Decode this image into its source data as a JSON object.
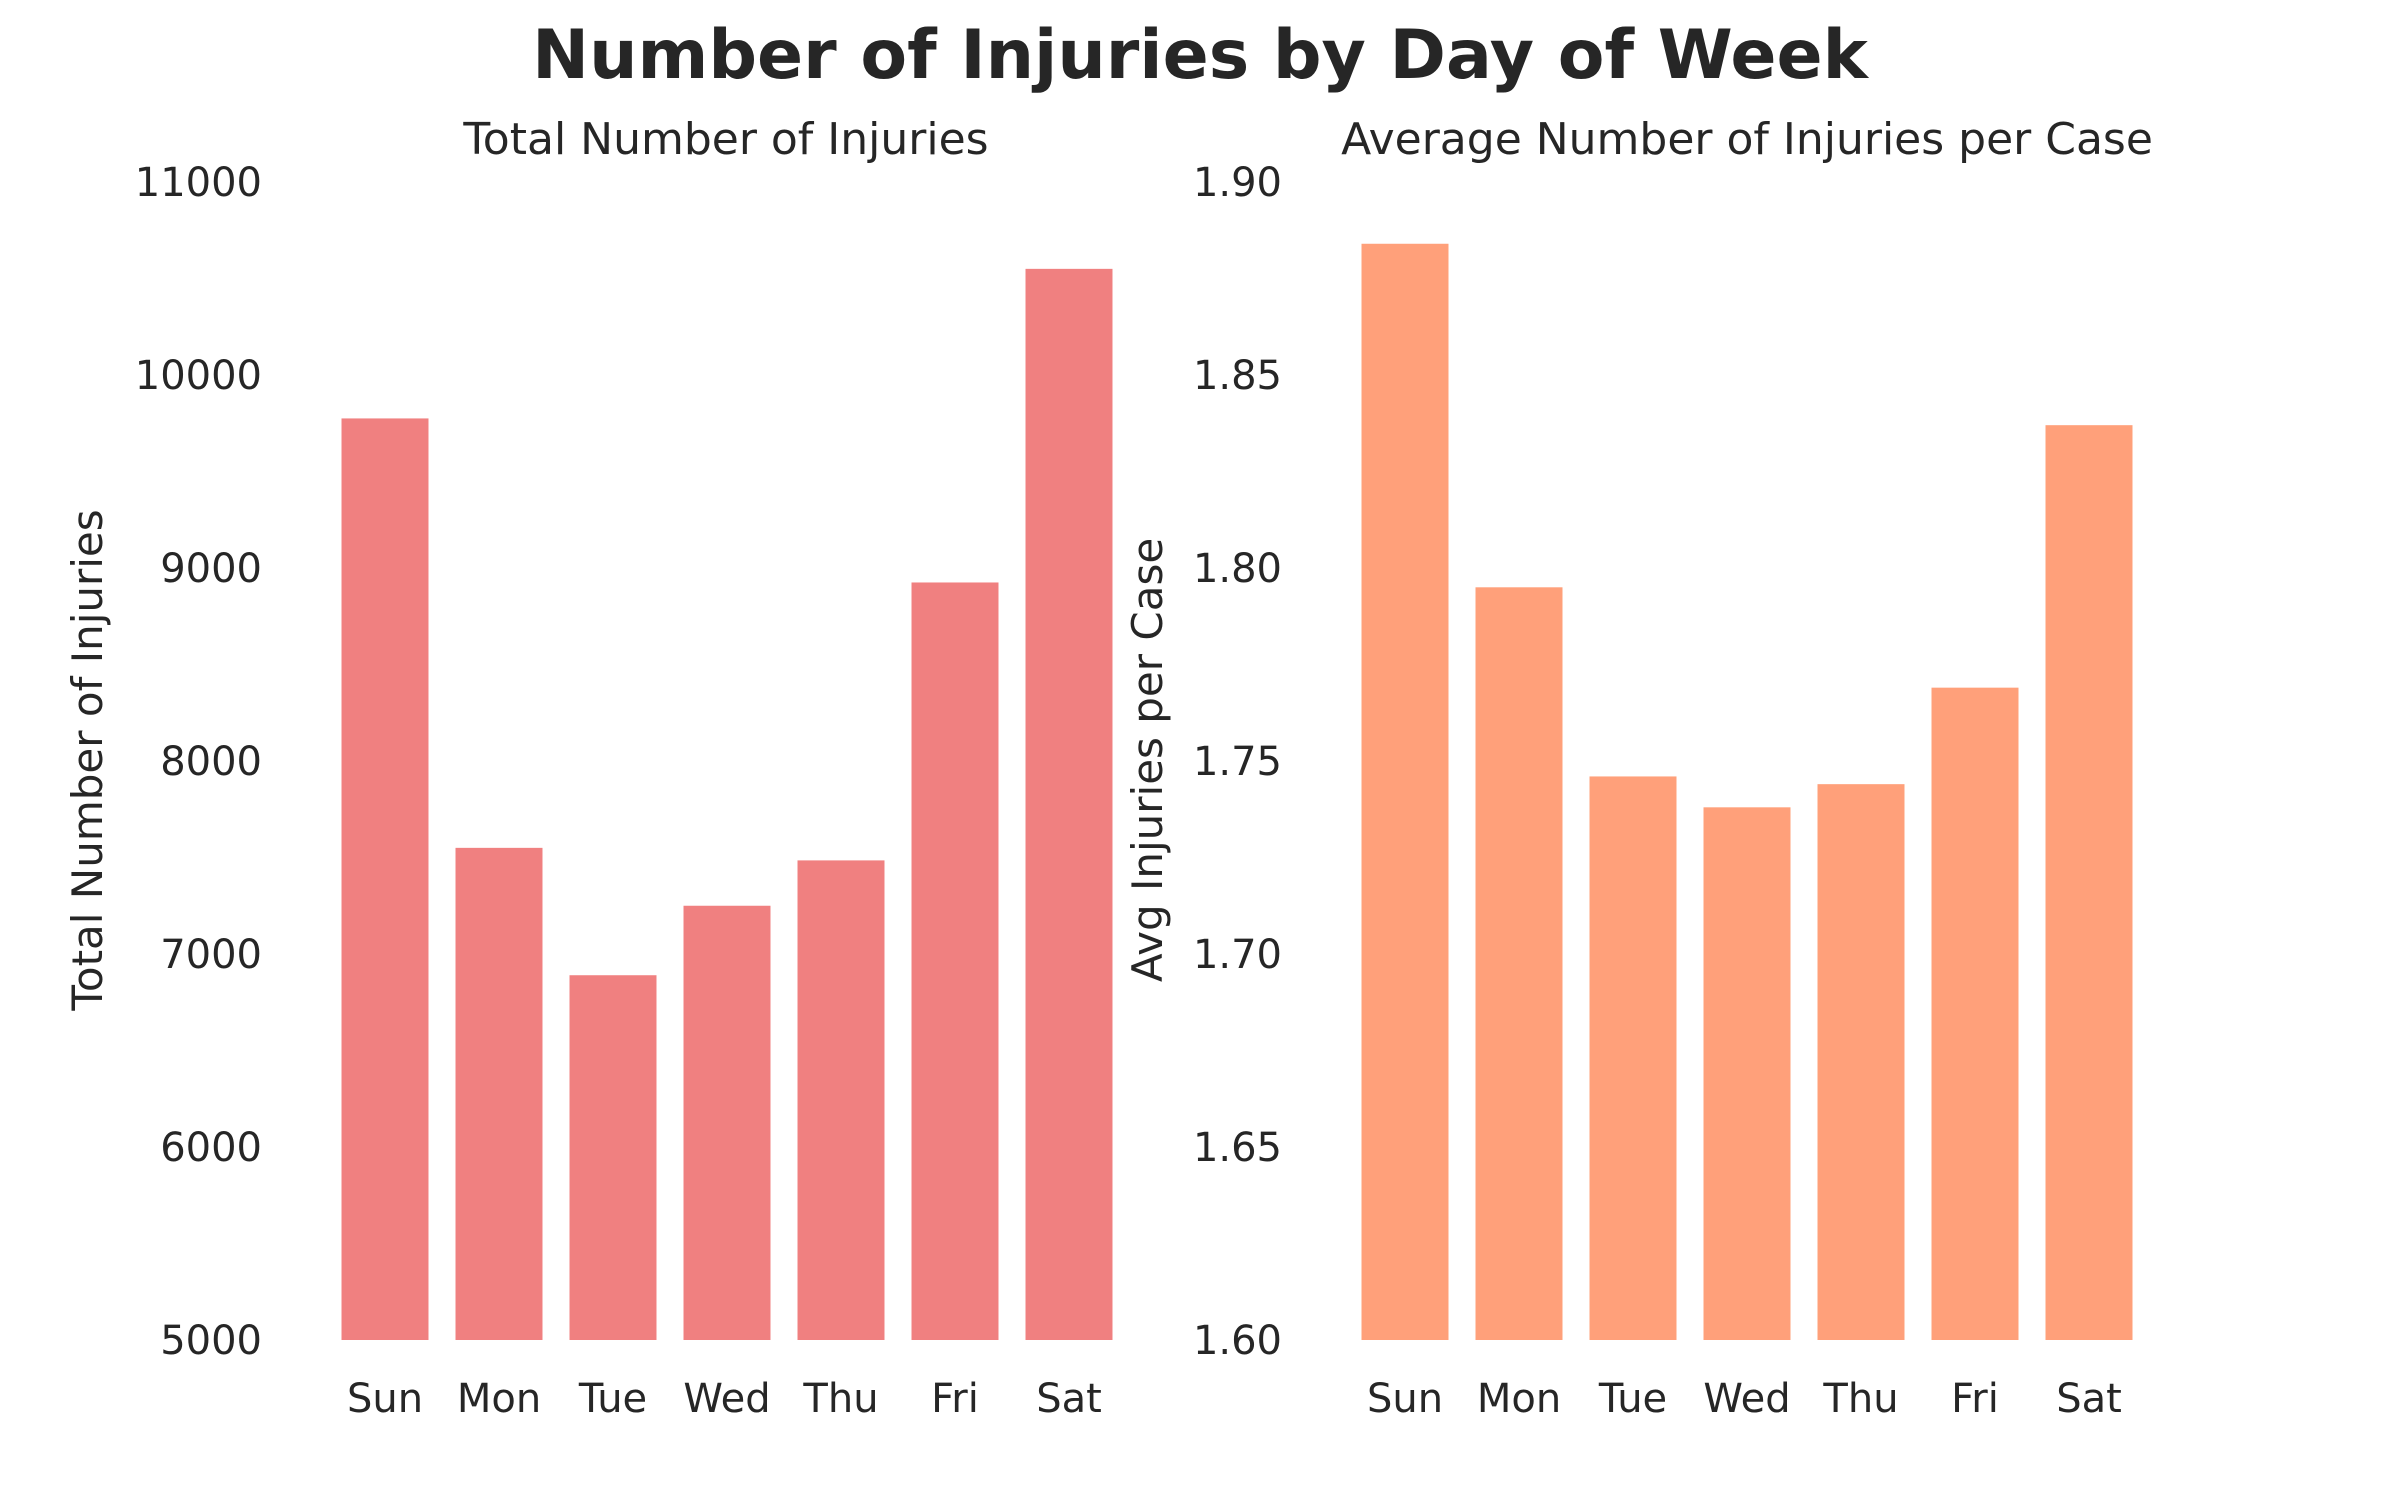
{
  "title": "Number of Injuries by Day of Week",
  "colors": {
    "left_bars": "#f08080",
    "right_bars": "#ffa07a",
    "text": "#262626"
  },
  "chart_data": [
    {
      "type": "bar",
      "title": "Total Number of Injuries",
      "xlabel": "",
      "ylabel": "Total Number of Injuries",
      "categories": [
        "Sun",
        "Mon",
        "Tue",
        "Wed",
        "Thu",
        "Fri",
        "Sat"
      ],
      "values": [
        9775,
        7550,
        6890,
        7250,
        7485,
        8925,
        10550
      ],
      "ylim": [
        5000,
        11000
      ],
      "yticks": [
        "5000",
        "6000",
        "7000",
        "8000",
        "9000",
        "10000",
        "11000"
      ],
      "grid": false
    },
    {
      "type": "bar",
      "title": "Average Number of Injuries per Case",
      "xlabel": "",
      "ylabel": "Avg Injuries per Case",
      "categories": [
        "Sun",
        "Mon",
        "Tue",
        "Wed",
        "Thu",
        "Fri",
        "Sat"
      ],
      "values": [
        1.884,
        1.795,
        1.746,
        1.738,
        1.744,
        1.769,
        1.837
      ],
      "ylim": [
        1.6,
        1.9
      ],
      "yticks": [
        "1.60",
        "1.65",
        "1.70",
        "1.75",
        "1.80",
        "1.85",
        "1.90"
      ],
      "grid": false
    }
  ]
}
